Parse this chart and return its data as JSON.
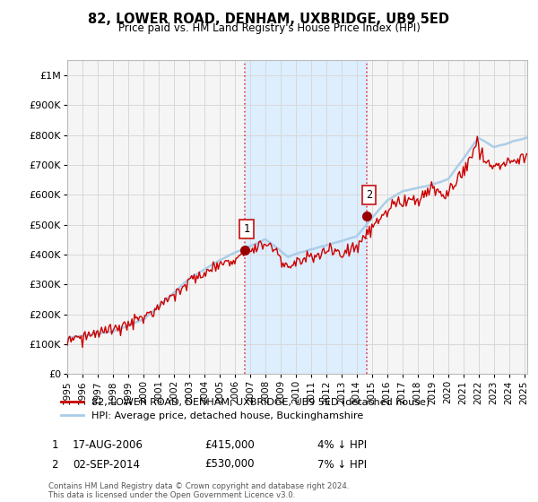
{
  "title": "82, LOWER ROAD, DENHAM, UXBRIDGE, UB9 5ED",
  "subtitle": "Price paid vs. HM Land Registry's House Price Index (HPI)",
  "ylabel_ticks": [
    "£0",
    "£100K",
    "£200K",
    "£300K",
    "£400K",
    "£500K",
    "£600K",
    "£700K",
    "£800K",
    "£900K",
    "£1M"
  ],
  "ytick_values": [
    0,
    100000,
    200000,
    300000,
    400000,
    500000,
    600000,
    700000,
    800000,
    900000,
    1000000
  ],
  "ylim": [
    0,
    1050000
  ],
  "xlim_start": 1995.0,
  "xlim_end": 2025.2,
  "xtick_years": [
    1995,
    1996,
    1997,
    1998,
    1999,
    2000,
    2001,
    2002,
    2003,
    2004,
    2005,
    2006,
    2007,
    2008,
    2009,
    2010,
    2011,
    2012,
    2013,
    2014,
    2015,
    2016,
    2017,
    2018,
    2019,
    2020,
    2021,
    2022,
    2023,
    2024,
    2025
  ],
  "purchase1_x": 2006.63,
  "purchase1_y": 415000,
  "purchase1_label": "1",
  "purchase2_x": 2014.67,
  "purchase2_y": 530000,
  "purchase2_label": "2",
  "hpi_color": "#a8cce8",
  "price_color": "#cc0000",
  "marker_color": "#990000",
  "vline_color": "#dd4444",
  "highlight_color": "#ddeeff",
  "legend_price_label": "82, LOWER ROAD, DENHAM, UXBRIDGE, UB9 5ED (detached house)",
  "legend_hpi_label": "HPI: Average price, detached house, Buckinghamshire",
  "table_row1": [
    "1",
    "17-AUG-2006",
    "£415,000",
    "4% ↓ HPI"
  ],
  "table_row2": [
    "2",
    "02-SEP-2014",
    "£530,000",
    "7% ↓ HPI"
  ],
  "footer": "Contains HM Land Registry data © Crown copyright and database right 2024.\nThis data is licensed under the Open Government Licence v3.0.",
  "bg_color": "#ffffff",
  "plot_bg_color": "#f5f5f5"
}
